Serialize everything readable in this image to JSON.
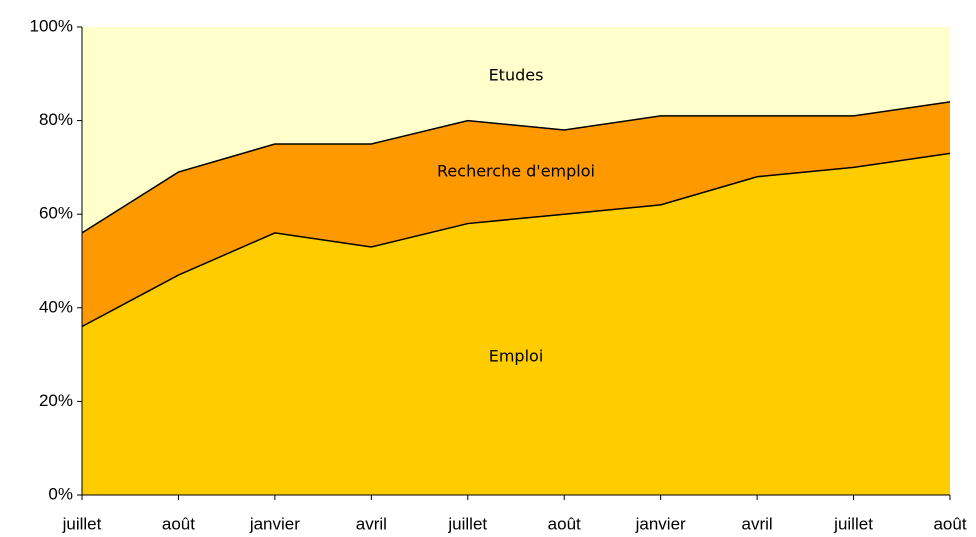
{
  "chart_data": {
    "type": "stacked_area",
    "categories": [
      "juillet",
      "août",
      "janvier",
      "avril",
      "juillet",
      "août",
      "janvier",
      "avril",
      "juillet",
      "août"
    ],
    "series": [
      {
        "name": "Emploi",
        "color": "#ffcc00",
        "values": [
          36,
          47,
          56,
          53,
          58,
          60,
          62,
          68,
          70,
          73
        ]
      },
      {
        "name": "Recherche d'emploi",
        "color": "#ff9900",
        "values": [
          20,
          22,
          19,
          22,
          22,
          18,
          19,
          13,
          11,
          11
        ]
      },
      {
        "name": "Etudes",
        "color": "#ffffcc",
        "values": [
          44,
          31,
          25,
          25,
          20,
          22,
          19,
          19,
          19,
          16
        ]
      }
    ],
    "ylim": [
      0,
      100
    ],
    "yticks": [
      {
        "value": 0,
        "label": "0%"
      },
      {
        "value": 20,
        "label": "20%"
      },
      {
        "value": 40,
        "label": "40%"
      },
      {
        "value": 60,
        "label": "60%"
      },
      {
        "value": 80,
        "label": "80%"
      },
      {
        "value": 100,
        "label": "100%"
      }
    ]
  }
}
